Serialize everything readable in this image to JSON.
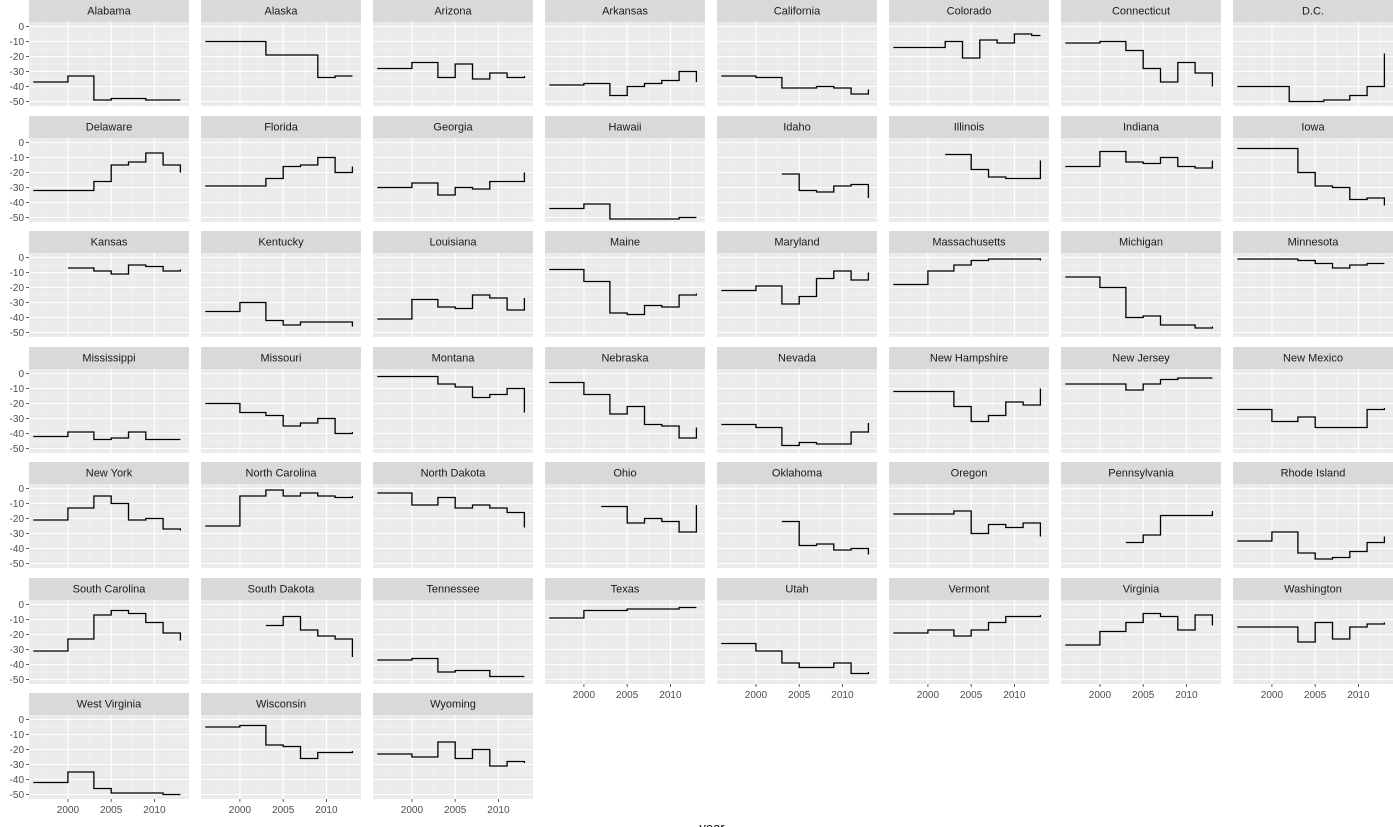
{
  "chart_data": {
    "type": "line",
    "subtype": "step",
    "xlabel": "year",
    "ylabel": "",
    "xlim": [
      1995.5,
      2014
    ],
    "ylim": [
      -53,
      3
    ],
    "x_ticks": [
      2000,
      2005,
      2010
    ],
    "y_ticks": [
      0,
      -10,
      -20,
      -30,
      -40,
      -50
    ],
    "grid": true,
    "line_color": "#000000",
    "panel_background": "#ebebeb",
    "strip_background": "#d9d9d9",
    "facets": [
      {
        "name": "Alabama",
        "x": [
          1996,
          2000,
          2003,
          2005,
          2009,
          2013
        ],
        "y": [
          -37,
          -33,
          -49,
          -48,
          -49,
          -49
        ]
      },
      {
        "name": "Alaska",
        "x": [
          1996,
          2003,
          2009,
          2011,
          2013
        ],
        "y": [
          -10,
          -19,
          -34,
          -33,
          -33
        ]
      },
      {
        "name": "Arizona",
        "x": [
          1996,
          2000,
          2003,
          2005,
          2007,
          2009,
          2011,
          2013
        ],
        "y": [
          -28,
          -24,
          -34,
          -25,
          -35,
          -31,
          -34,
          -33
        ]
      },
      {
        "name": "Arkansas",
        "x": [
          1996,
          2000,
          2003,
          2005,
          2007,
          2009,
          2011,
          2013
        ],
        "y": [
          -39,
          -38,
          -46,
          -40,
          -38,
          -36,
          -30,
          -37
        ]
      },
      {
        "name": "California",
        "x": [
          1996,
          2000,
          2003,
          2007,
          2009,
          2011,
          2013
        ],
        "y": [
          -33,
          -34,
          -41,
          -40,
          -41,
          -45,
          -42
        ]
      },
      {
        "name": "Colorado",
        "x": [
          1996,
          2002,
          2004,
          2006,
          2008,
          2010,
          2012,
          2013
        ],
        "y": [
          -14,
          -10,
          -21,
          -9,
          -11,
          -5,
          -6,
          -6
        ]
      },
      {
        "name": "Connecticut",
        "x": [
          1996,
          2000,
          2003,
          2005,
          2007,
          2009,
          2011,
          2013
        ],
        "y": [
          -11,
          -10,
          -16,
          -28,
          -37,
          -24,
          -31,
          -40
        ]
      },
      {
        "name": "D.C.",
        "x": [
          1996,
          2000,
          2002,
          2006,
          2009,
          2011,
          2013
        ],
        "y": [
          -40,
          -40,
          -50,
          -49,
          -46,
          -40,
          -18
        ]
      },
      {
        "name": "Delaware",
        "x": [
          1996,
          2003,
          2005,
          2007,
          2009,
          2011,
          2013
        ],
        "y": [
          -32,
          -26,
          -15,
          -13,
          -7,
          -15,
          -20
        ]
      },
      {
        "name": "Florida",
        "x": [
          1996,
          2003,
          2005,
          2007,
          2009,
          2011,
          2013
        ],
        "y": [
          -29,
          -24,
          -16,
          -15,
          -10,
          -20,
          -16
        ]
      },
      {
        "name": "Georgia",
        "x": [
          1996,
          2000,
          2003,
          2005,
          2007,
          2009,
          2013
        ],
        "y": [
          -30,
          -27,
          -35,
          -30,
          -31,
          -26,
          -20
        ]
      },
      {
        "name": "Hawaii",
        "x": [
          1996,
          2000,
          2003,
          2011,
          2013
        ],
        "y": [
          -44,
          -41,
          -51,
          -50,
          -50
        ]
      },
      {
        "name": "Idaho",
        "x": [
          2003,
          2005,
          2007,
          2009,
          2011,
          2013
        ],
        "y": [
          -21,
          -32,
          -33,
          -29,
          -28,
          -37
        ]
      },
      {
        "name": "Illinois",
        "x": [
          2002,
          2005,
          2007,
          2009,
          2013
        ],
        "y": [
          -8,
          -18,
          -23,
          -24,
          -12
        ]
      },
      {
        "name": "Indiana",
        "x": [
          1996,
          2000,
          2003,
          2005,
          2007,
          2009,
          2011,
          2013
        ],
        "y": [
          -16,
          -6,
          -13,
          -14,
          -10,
          -16,
          -17,
          -12
        ]
      },
      {
        "name": "Iowa",
        "x": [
          1996,
          2003,
          2005,
          2007,
          2009,
          2011,
          2013
        ],
        "y": [
          -4,
          -20,
          -29,
          -30,
          -38,
          -37,
          -42
        ]
      },
      {
        "name": "Kansas",
        "x": [
          2000,
          2003,
          2005,
          2007,
          2009,
          2011,
          2013
        ],
        "y": [
          -7,
          -9,
          -11,
          -5,
          -6,
          -9,
          -8
        ]
      },
      {
        "name": "Kentucky",
        "x": [
          1996,
          2000,
          2003,
          2005,
          2007,
          2013
        ],
        "y": [
          -36,
          -30,
          -42,
          -45,
          -43,
          -46
        ]
      },
      {
        "name": "Louisiana",
        "x": [
          1996,
          2000,
          2003,
          2005,
          2007,
          2009,
          2011,
          2013
        ],
        "y": [
          -41,
          -28,
          -33,
          -34,
          -25,
          -27,
          -35,
          -27
        ]
      },
      {
        "name": "Maine",
        "x": [
          1996,
          2000,
          2003,
          2005,
          2007,
          2009,
          2011,
          2013
        ],
        "y": [
          -8,
          -16,
          -37,
          -38,
          -32,
          -33,
          -25,
          -24
        ]
      },
      {
        "name": "Maryland",
        "x": [
          1996,
          2000,
          2003,
          2005,
          2007,
          2009,
          2011,
          2013
        ],
        "y": [
          -22,
          -19,
          -31,
          -26,
          -14,
          -9,
          -15,
          -10
        ]
      },
      {
        "name": "Massachusetts",
        "x": [
          1996,
          2000,
          2003,
          2005,
          2007,
          2011,
          2013
        ],
        "y": [
          -18,
          -9,
          -5,
          -2,
          -1,
          -1,
          -2
        ]
      },
      {
        "name": "Michigan",
        "x": [
          1996,
          2000,
          2003,
          2005,
          2007,
          2011,
          2013
        ],
        "y": [
          -13,
          -20,
          -40,
          -39,
          -45,
          -47,
          -46
        ]
      },
      {
        "name": "Minnesota",
        "x": [
          1996,
          2003,
          2005,
          2007,
          2009,
          2011,
          2013
        ],
        "y": [
          -1,
          -2,
          -4,
          -7,
          -5,
          -4,
          -4
        ]
      },
      {
        "name": "Mississippi",
        "x": [
          1996,
          2000,
          2003,
          2005,
          2007,
          2009,
          2013
        ],
        "y": [
          -42,
          -39,
          -44,
          -43,
          -39,
          -44,
          -44
        ]
      },
      {
        "name": "Missouri",
        "x": [
          1996,
          2000,
          2003,
          2005,
          2007,
          2009,
          2011,
          2013
        ],
        "y": [
          -20,
          -26,
          -28,
          -35,
          -33,
          -30,
          -40,
          -39
        ]
      },
      {
        "name": "Montana",
        "x": [
          1996,
          2003,
          2005,
          2007,
          2009,
          2011,
          2013
        ],
        "y": [
          -2,
          -7,
          -9,
          -16,
          -14,
          -10,
          -26
        ]
      },
      {
        "name": "Nebraska",
        "x": [
          1996,
          2000,
          2003,
          2005,
          2007,
          2009,
          2011,
          2013
        ],
        "y": [
          -6,
          -14,
          -27,
          -22,
          -34,
          -35,
          -43,
          -36
        ]
      },
      {
        "name": "Nevada",
        "x": [
          1996,
          2000,
          2003,
          2005,
          2007,
          2011,
          2013
        ],
        "y": [
          -34,
          -36,
          -48,
          -46,
          -47,
          -39,
          -33
        ]
      },
      {
        "name": "New Hampshire",
        "x": [
          1996,
          2003,
          2005,
          2007,
          2009,
          2011,
          2013
        ],
        "y": [
          -12,
          -22,
          -32,
          -28,
          -19,
          -21,
          -10
        ]
      },
      {
        "name": "New Jersey",
        "x": [
          1996,
          2003,
          2005,
          2007,
          2009,
          2013
        ],
        "y": [
          -7,
          -11,
          -7,
          -4,
          -3,
          -3
        ]
      },
      {
        "name": "New Mexico",
        "x": [
          1996,
          2000,
          2003,
          2005,
          2011,
          2013
        ],
        "y": [
          -24,
          -32,
          -29,
          -36,
          -24,
          -23
        ]
      },
      {
        "name": "New York",
        "x": [
          1996,
          2000,
          2003,
          2005,
          2007,
          2009,
          2011,
          2013
        ],
        "y": [
          -21,
          -13,
          -5,
          -10,
          -21,
          -20,
          -27,
          -28
        ]
      },
      {
        "name": "North Carolina",
        "x": [
          1996,
          2000,
          2003,
          2005,
          2007,
          2009,
          2011,
          2013
        ],
        "y": [
          -25,
          -5,
          -1,
          -5,
          -3,
          -5,
          -6,
          -5
        ]
      },
      {
        "name": "North Dakota",
        "x": [
          1996,
          2000,
          2003,
          2005,
          2007,
          2009,
          2011,
          2013
        ],
        "y": [
          -3,
          -11,
          -6,
          -13,
          -11,
          -13,
          -16,
          -26
        ]
      },
      {
        "name": "Ohio",
        "x": [
          2002,
          2005,
          2007,
          2009,
          2011,
          2013
        ],
        "y": [
          -12,
          -23,
          -20,
          -22,
          -29,
          -11
        ]
      },
      {
        "name": "Oklahoma",
        "x": [
          2003,
          2005,
          2007,
          2009,
          2011,
          2013
        ],
        "y": [
          -22,
          -38,
          -37,
          -41,
          -40,
          -44
        ]
      },
      {
        "name": "Oregon",
        "x": [
          1996,
          2003,
          2005,
          2007,
          2009,
          2011,
          2013
        ],
        "y": [
          -17,
          -15,
          -30,
          -24,
          -26,
          -23,
          -32
        ]
      },
      {
        "name": "Pennsylvania",
        "x": [
          2003,
          2005,
          2007,
          2013
        ],
        "y": [
          -36,
          -31,
          -18,
          -15
        ]
      },
      {
        "name": "Rhode Island",
        "x": [
          1996,
          2000,
          2003,
          2005,
          2007,
          2009,
          2011,
          2013
        ],
        "y": [
          -35,
          -29,
          -43,
          -47,
          -46,
          -42,
          -36,
          -32
        ]
      },
      {
        "name": "South Carolina",
        "x": [
          1996,
          2000,
          2003,
          2005,
          2007,
          2009,
          2011,
          2013
        ],
        "y": [
          -31,
          -23,
          -7,
          -4,
          -6,
          -12,
          -19,
          -24
        ]
      },
      {
        "name": "South Dakota",
        "x": [
          2003,
          2005,
          2007,
          2009,
          2011,
          2013
        ],
        "y": [
          -14,
          -8,
          -17,
          -21,
          -23,
          -35
        ]
      },
      {
        "name": "Tennessee",
        "x": [
          1996,
          2000,
          2003,
          2005,
          2009,
          2013
        ],
        "y": [
          -37,
          -36,
          -45,
          -44,
          -48,
          -48
        ]
      },
      {
        "name": "Texas",
        "x": [
          1996,
          2000,
          2005,
          2009,
          2011,
          2013
        ],
        "y": [
          -9,
          -4,
          -3,
          -3,
          -2,
          -2
        ]
      },
      {
        "name": "Utah",
        "x": [
          1996,
          2000,
          2003,
          2005,
          2009,
          2011,
          2013
        ],
        "y": [
          -26,
          -31,
          -39,
          -42,
          -39,
          -46,
          -45
        ]
      },
      {
        "name": "Vermont",
        "x": [
          1996,
          2000,
          2003,
          2005,
          2007,
          2009,
          2013
        ],
        "y": [
          -19,
          -17,
          -21,
          -17,
          -12,
          -8,
          -7
        ]
      },
      {
        "name": "Virginia",
        "x": [
          1996,
          2000,
          2003,
          2005,
          2007,
          2009,
          2011,
          2013
        ],
        "y": [
          -27,
          -18,
          -12,
          -6,
          -8,
          -17,
          -7,
          -14
        ]
      },
      {
        "name": "Washington",
        "x": [
          1996,
          2003,
          2005,
          2007,
          2009,
          2011,
          2013
        ],
        "y": [
          -15,
          -25,
          -12,
          -23,
          -15,
          -13,
          -12
        ]
      },
      {
        "name": "West Virginia",
        "x": [
          1996,
          2000,
          2003,
          2005,
          2011,
          2013
        ],
        "y": [
          -42,
          -35,
          -46,
          -49,
          -50,
          -50
        ]
      },
      {
        "name": "Wisconsin",
        "x": [
          1996,
          2000,
          2003,
          2005,
          2007,
          2009,
          2013
        ],
        "y": [
          -5,
          -4,
          -17,
          -18,
          -26,
          -22,
          -21
        ]
      },
      {
        "name": "Wyoming",
        "x": [
          1996,
          2000,
          2003,
          2005,
          2007,
          2009,
          2011,
          2013
        ],
        "y": [
          -23,
          -25,
          -15,
          -26,
          -20,
          -31,
          -28,
          -29
        ]
      }
    ]
  }
}
